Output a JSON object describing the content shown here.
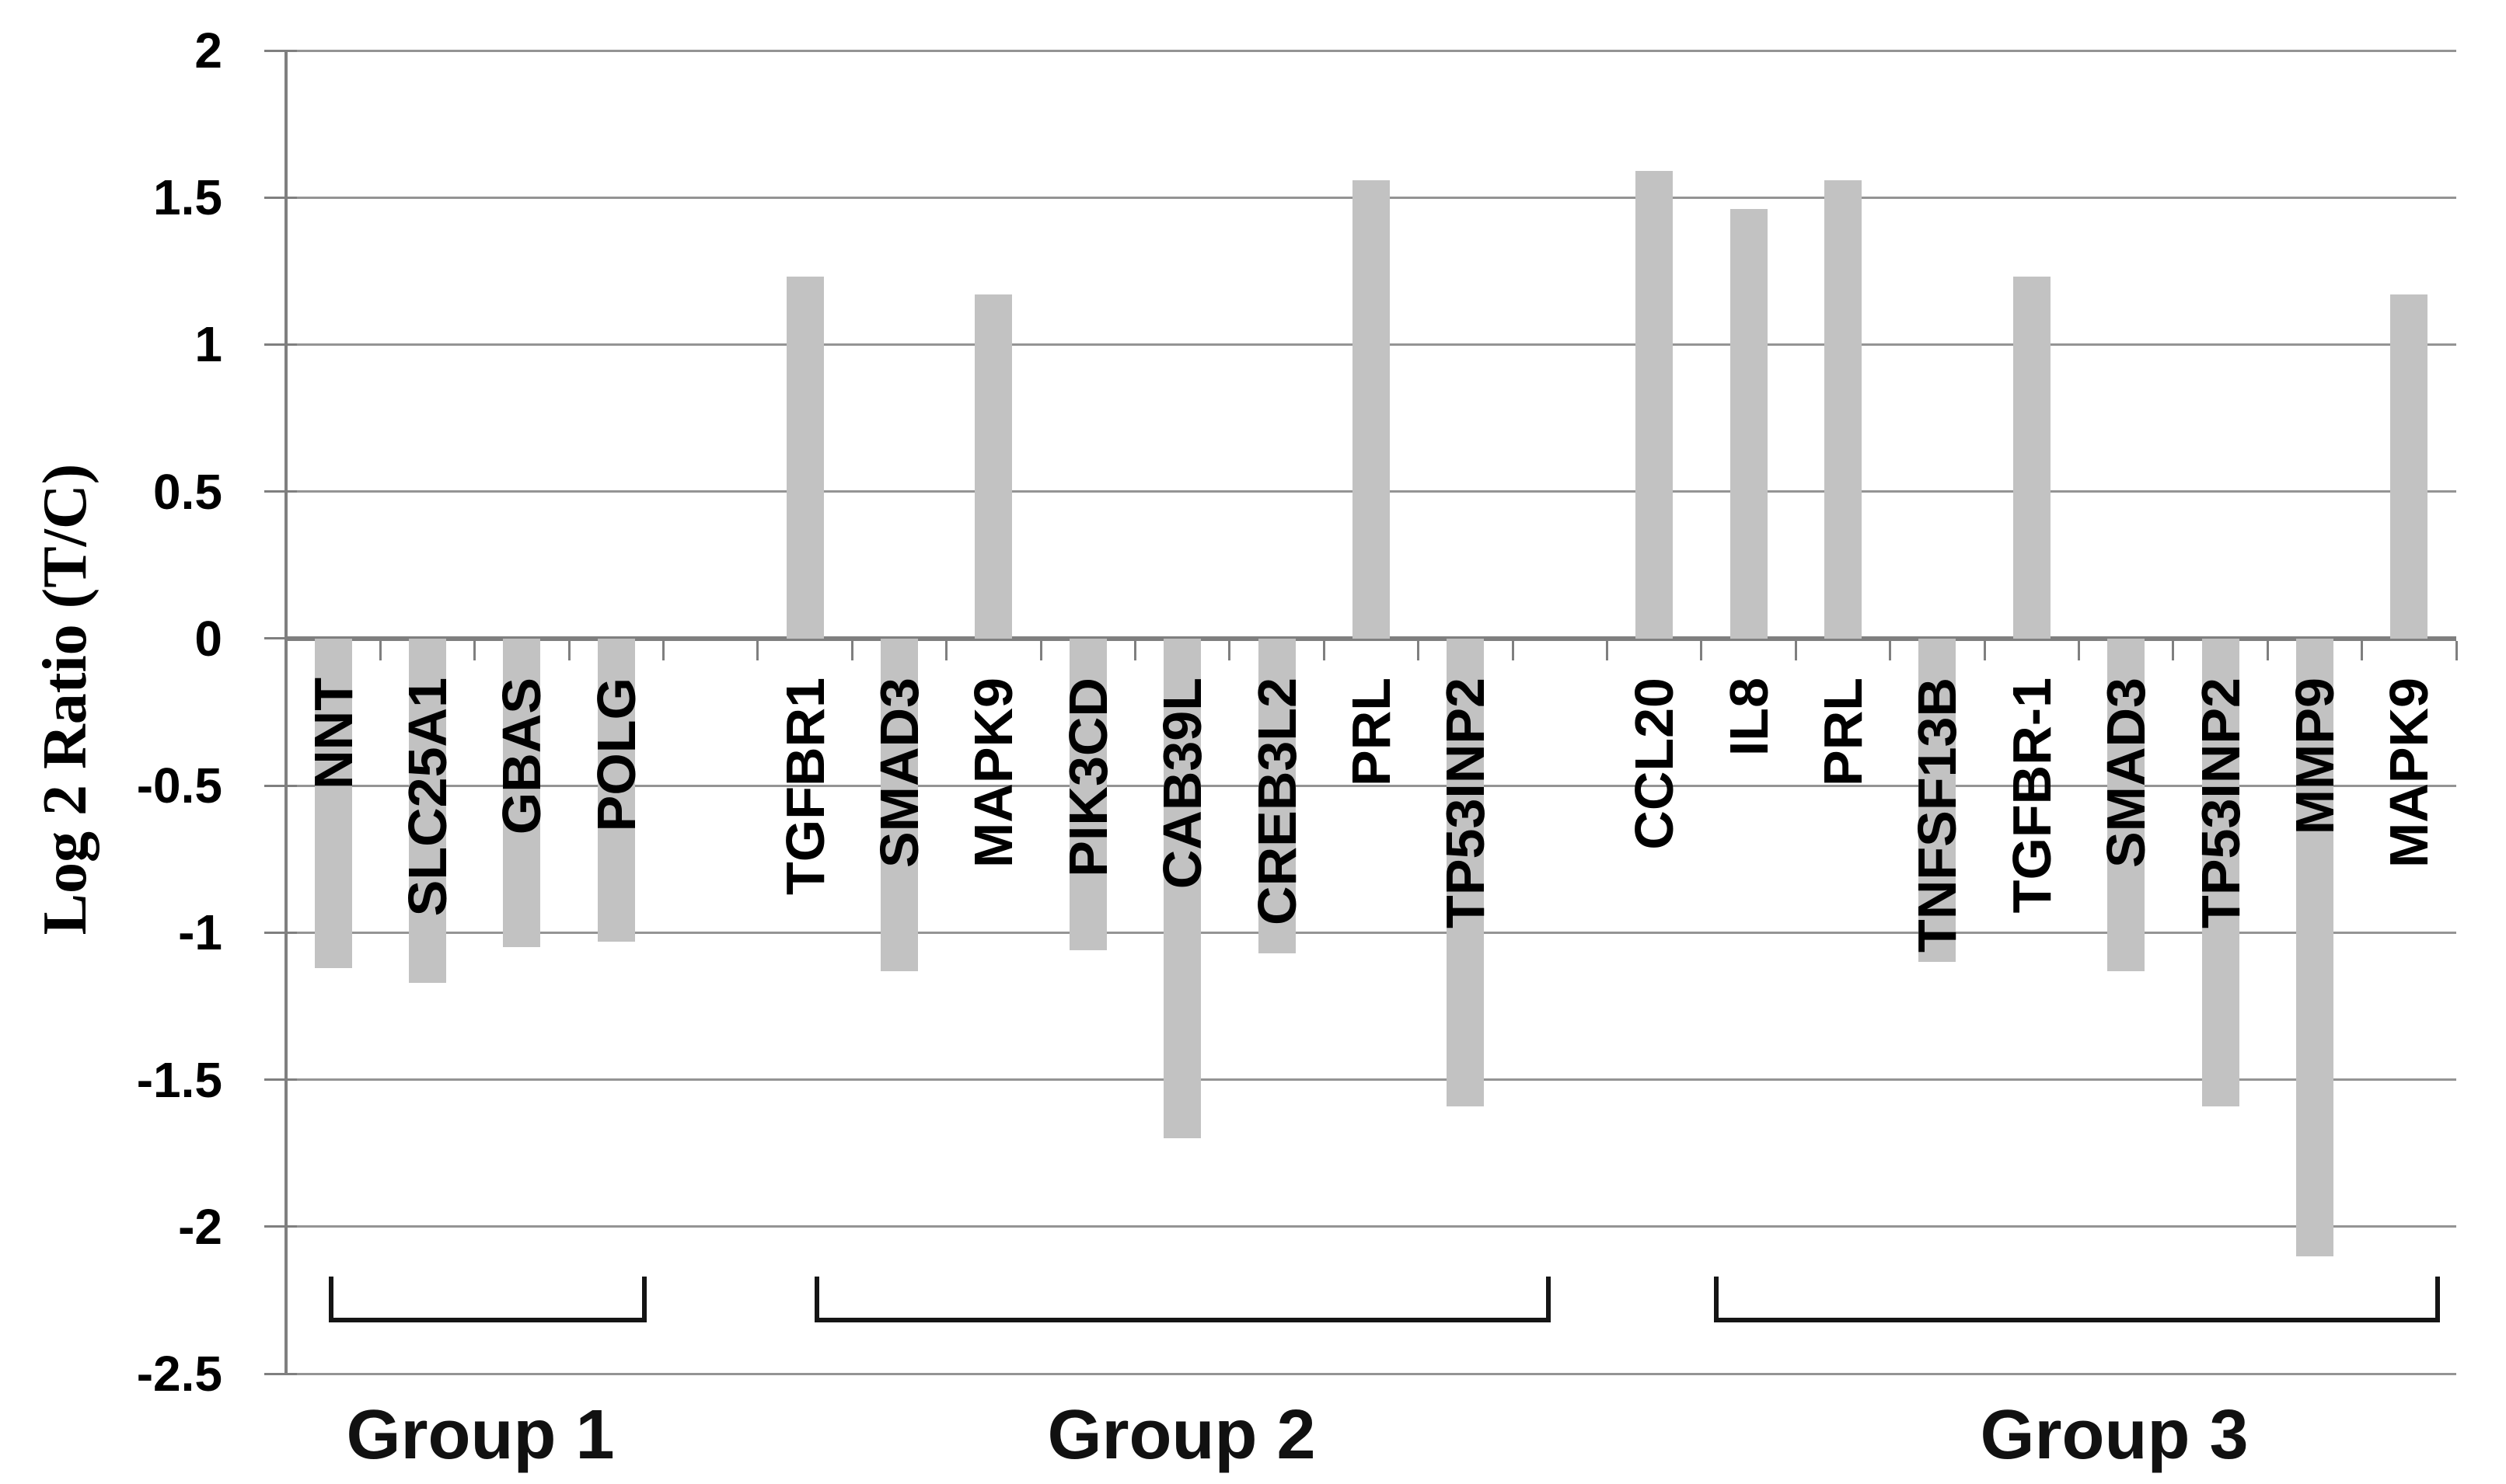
{
  "chart_data": {
    "type": "bar",
    "title": "",
    "ylabel": "Log 2 Ratio (T/C)",
    "xlabel": "",
    "ylim": [
      -2.5,
      2
    ],
    "ytick_step": 0.5,
    "ytick_labels": [
      "2",
      "1.5",
      "1",
      "0.5",
      "0",
      "-0.5",
      "-1",
      "-1.5",
      "-2",
      "-2.5"
    ],
    "grid": true,
    "legend": false,
    "bar_color": "#c2c2c2",
    "groups": [
      {
        "label": "Group 1",
        "bars": [
          {
            "gene": "NNT",
            "value": -1.12
          },
          {
            "gene": "SLC25A1",
            "value": -1.17
          },
          {
            "gene": "GBAS",
            "value": -1.05
          },
          {
            "gene": "POLG",
            "value": -1.03
          }
        ]
      },
      {
        "label": "Group 2",
        "bars": [
          {
            "gene": "TGFBR1",
            "value": 1.23
          },
          {
            "gene": "SMAD3",
            "value": -1.13
          },
          {
            "gene": "MAPK9",
            "value": 1.17
          },
          {
            "gene": "PIK3CD",
            "value": -1.06
          },
          {
            "gene": "CAB39L",
            "value": -1.7
          },
          {
            "gene": "CREB3L2",
            "value": -1.07
          },
          {
            "gene": "PRL",
            "value": 1.56
          },
          {
            "gene": "TP53INP2",
            "value": -1.59
          }
        ]
      },
      {
        "label": "Group 3",
        "bars": [
          {
            "gene": "CCL20",
            "value": 1.59
          },
          {
            "gene": "IL8",
            "value": 1.46
          },
          {
            "gene": "PRL",
            "value": 1.56
          },
          {
            "gene": "TNFSF13B",
            "value": -1.1
          },
          {
            "gene": "TGFBR-1",
            "value": 1.23
          },
          {
            "gene": "SMAD3",
            "value": -1.13
          },
          {
            "gene": "TP53INP2",
            "value": -1.59
          },
          {
            "gene": "MMP9",
            "value": -2.1
          },
          {
            "gene": "MAPK9",
            "value": 1.17
          }
        ]
      }
    ]
  }
}
